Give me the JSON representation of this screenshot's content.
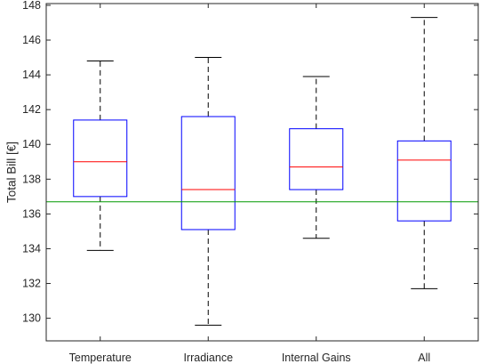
{
  "chart_data": {
    "type": "box",
    "categories": [
      "Temperature",
      "Irradiance",
      "Internal Gains",
      "All"
    ],
    "boxes": [
      {
        "whisker_low": 133.9,
        "q1": 137.0,
        "median": 139.0,
        "q3": 141.4,
        "whisker_high": 144.8
      },
      {
        "whisker_low": 129.6,
        "q1": 135.1,
        "median": 137.4,
        "q3": 141.6,
        "whisker_high": 145.0
      },
      {
        "whisker_low": 134.6,
        "q1": 137.4,
        "median": 138.7,
        "q3": 140.9,
        "whisker_high": 143.9
      },
      {
        "whisker_low": 131.7,
        "q1": 135.6,
        "median": 139.1,
        "q3": 140.2,
        "whisker_high": 147.3
      }
    ],
    "reference_line": 136.7,
    "ylabel": "Total Bill [€]",
    "ylim": [
      128.7,
      148.1
    ],
    "yticks": [
      130,
      132,
      134,
      136,
      138,
      140,
      142,
      144,
      146,
      148
    ],
    "colors": {
      "box": "#0000ff",
      "median": "#ff0000",
      "whisker": "#000000",
      "reference_line": "#009900",
      "axis": "#262626"
    }
  }
}
